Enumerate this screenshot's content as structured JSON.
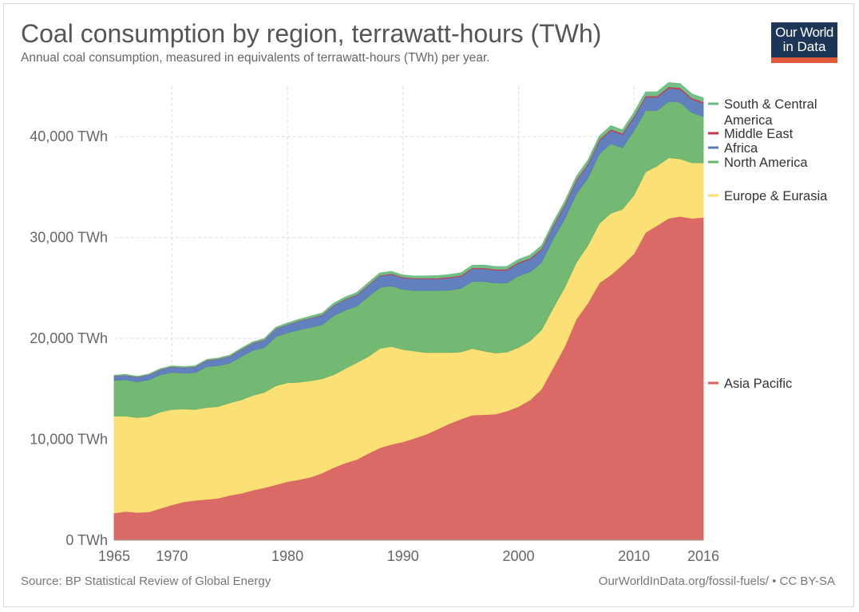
{
  "header": {
    "title": "Coal consumption by region, terrawatt-hours (TWh)",
    "subtitle": "Annual coal consumption, measured in equivalents of terrawatt-hours (TWh) per year."
  },
  "logo": {
    "line1": "Our World",
    "line2": "in Data"
  },
  "footer": {
    "source": "Source: BP Statistical Review of Global Energy",
    "credit": "OurWorldInData.org/fossil-fuels/ • CC BY-SA"
  },
  "chart_data": {
    "type": "area",
    "stacked": true,
    "title": "Coal consumption by region, terrawatt-hours (TWh)",
    "ylim": [
      0,
      45000
    ],
    "xlim": [
      1965,
      2016
    ],
    "y_ticks": [
      {
        "value": 0,
        "label": "0 TWh"
      },
      {
        "value": 10000,
        "label": "10,000 TWh"
      },
      {
        "value": 20000,
        "label": "20,000 TWh"
      },
      {
        "value": 30000,
        "label": "30,000 TWh"
      },
      {
        "value": 40000,
        "label": "40,000 TWh"
      }
    ],
    "x_ticks": [
      {
        "value": 1965,
        "label": "1965"
      },
      {
        "value": 1970,
        "label": "1970"
      },
      {
        "value": 1980,
        "label": "1980"
      },
      {
        "value": 1990,
        "label": "1990"
      },
      {
        "value": 2000,
        "label": "2000"
      },
      {
        "value": 2010,
        "label": "2010"
      },
      {
        "value": 2016,
        "label": "2016"
      }
    ],
    "x": [
      1965,
      1966,
      1967,
      1968,
      1969,
      1970,
      1971,
      1972,
      1973,
      1974,
      1975,
      1976,
      1977,
      1978,
      1979,
      1980,
      1981,
      1982,
      1983,
      1984,
      1985,
      1986,
      1987,
      1988,
      1989,
      1990,
      1991,
      1992,
      1993,
      1994,
      1995,
      1996,
      1997,
      1998,
      1999,
      2000,
      2001,
      2002,
      2003,
      2004,
      2005,
      2006,
      2007,
      2008,
      2009,
      2010,
      2011,
      2012,
      2013,
      2014,
      2015,
      2016
    ],
    "series": [
      {
        "name": "Asia Pacific",
        "color": "#d9625f",
        "values": [
          2700,
          2850,
          2750,
          2800,
          3150,
          3500,
          3800,
          3950,
          4050,
          4150,
          4450,
          4650,
          4950,
          5200,
          5500,
          5800,
          6000,
          6250,
          6650,
          7200,
          7650,
          8000,
          8600,
          9150,
          9500,
          9750,
          10100,
          10500,
          11000,
          11550,
          12000,
          12400,
          12450,
          12500,
          12800,
          13250,
          13900,
          15000,
          17100,
          19200,
          21900,
          23500,
          25500,
          26300,
          27300,
          28400,
          30500,
          31200,
          31900,
          32100,
          31900,
          32000
        ]
      },
      {
        "name": "Europe & Eurasia",
        "color": "#fbdf6e",
        "values": [
          9600,
          9450,
          9400,
          9450,
          9550,
          9450,
          9200,
          9000,
          9100,
          9100,
          9150,
          9250,
          9400,
          9450,
          9800,
          9800,
          9650,
          9550,
          9350,
          9200,
          9350,
          9600,
          9600,
          9850,
          9700,
          9150,
          8650,
          8100,
          7600,
          7050,
          6650,
          6600,
          6300,
          6050,
          5850,
          5850,
          5850,
          5850,
          5900,
          5850,
          5600,
          5700,
          5900,
          6100,
          5500,
          5800,
          6000,
          5900,
          6000,
          5700,
          5500,
          5400
        ]
      },
      {
        "name": "North America",
        "color": "#6cb46c",
        "values": [
          3550,
          3600,
          3550,
          3650,
          3700,
          3700,
          3550,
          3650,
          4050,
          4050,
          3950,
          4300,
          4450,
          4450,
          4900,
          4950,
          5200,
          5300,
          5350,
          5850,
          5800,
          5600,
          5950,
          6050,
          6000,
          5950,
          6000,
          6150,
          6150,
          6200,
          6300,
          6650,
          6900,
          6950,
          6850,
          7100,
          6850,
          6700,
          6850,
          6800,
          6800,
          6700,
          6900,
          6900,
          6100,
          6400,
          6100,
          5500,
          5600,
          5600,
          5000,
          4600
        ]
      },
      {
        "name": "Africa",
        "color": "#5879b9",
        "values": [
          430,
          450,
          470,
          490,
          510,
          530,
          550,
          580,
          610,
          640,
          660,
          700,
          720,
          740,
          760,
          800,
          850,
          900,
          950,
          1000,
          1050,
          1080,
          1100,
          1150,
          1150,
          1150,
          1150,
          1150,
          1150,
          1200,
          1200,
          1250,
          1250,
          1250,
          1250,
          1250,
          1250,
          1250,
          1250,
          1300,
          1300,
          1300,
          1300,
          1300,
          1300,
          1300,
          1300,
          1300,
          1300,
          1300,
          1300,
          1300
        ]
      },
      {
        "name": "Middle East",
        "color": "#c8374a",
        "values": [
          20,
          20,
          20,
          20,
          20,
          25,
          25,
          25,
          25,
          30,
          30,
          30,
          30,
          30,
          30,
          30,
          35,
          40,
          40,
          45,
          50,
          55,
          60,
          60,
          70,
          70,
          70,
          70,
          80,
          80,
          90,
          90,
          100,
          100,
          100,
          100,
          100,
          110,
          110,
          120,
          120,
          120,
          130,
          130,
          130,
          130,
          130,
          130,
          140,
          140,
          140,
          140
        ]
      },
      {
        "name": "South & Central America",
        "color": "#6dbb83",
        "values": [
          60,
          60,
          60,
          60,
          70,
          70,
          80,
          80,
          80,
          90,
          100,
          100,
          110,
          120,
          130,
          150,
          160,
          170,
          180,
          190,
          200,
          210,
          220,
          230,
          230,
          220,
          220,
          230,
          240,
          250,
          260,
          260,
          270,
          270,
          280,
          290,
          300,
          300,
          310,
          320,
          330,
          340,
          350,
          360,
          340,
          380,
          400,
          410,
          420,
          420,
          400,
          400
        ]
      }
    ],
    "legend_placement": "right"
  }
}
